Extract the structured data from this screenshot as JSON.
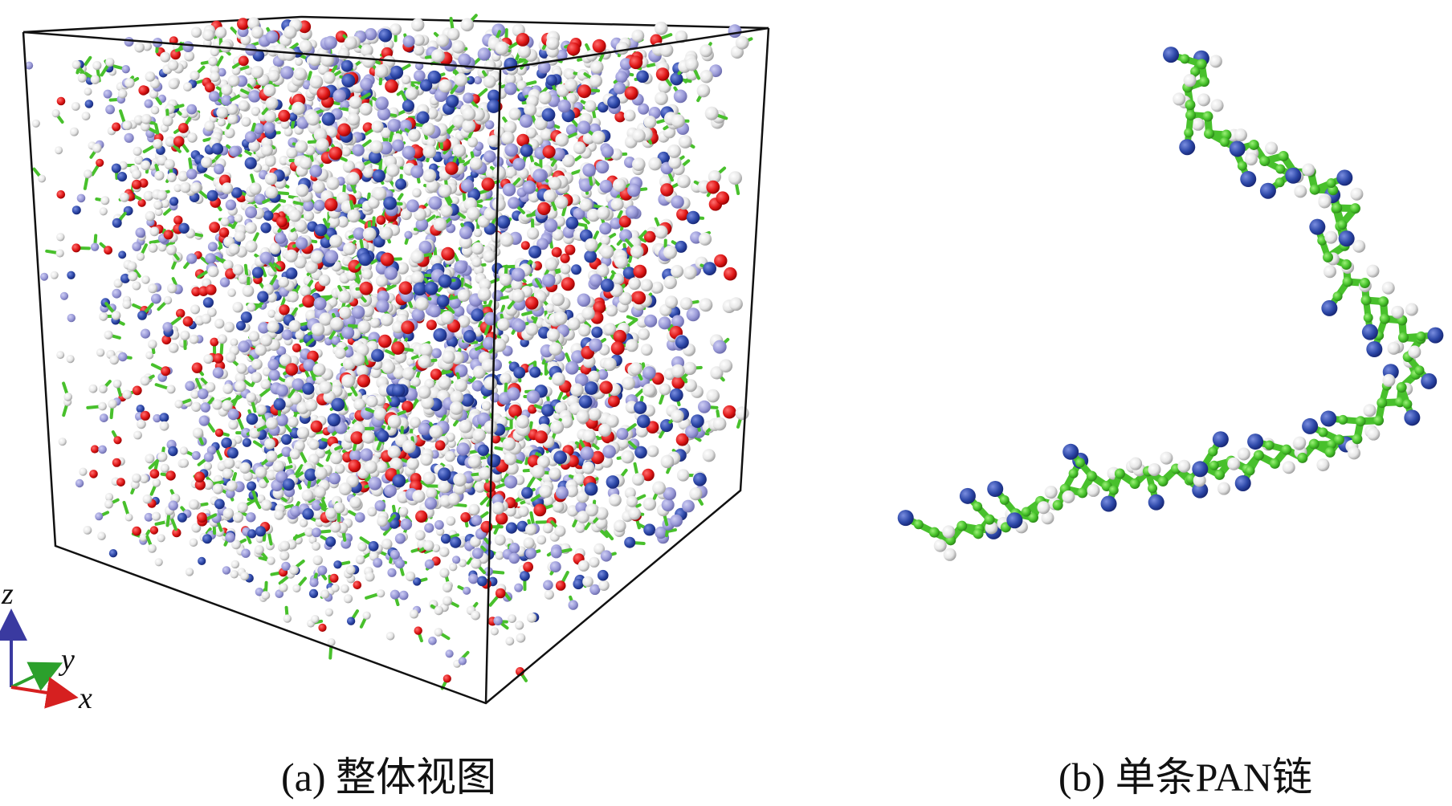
{
  "panel_a": {
    "caption": "(a) 整体视图",
    "axis_labels": [
      "z",
      "y",
      "x"
    ]
  },
  "panel_b": {
    "caption": "(b) 单条PAN链"
  }
}
